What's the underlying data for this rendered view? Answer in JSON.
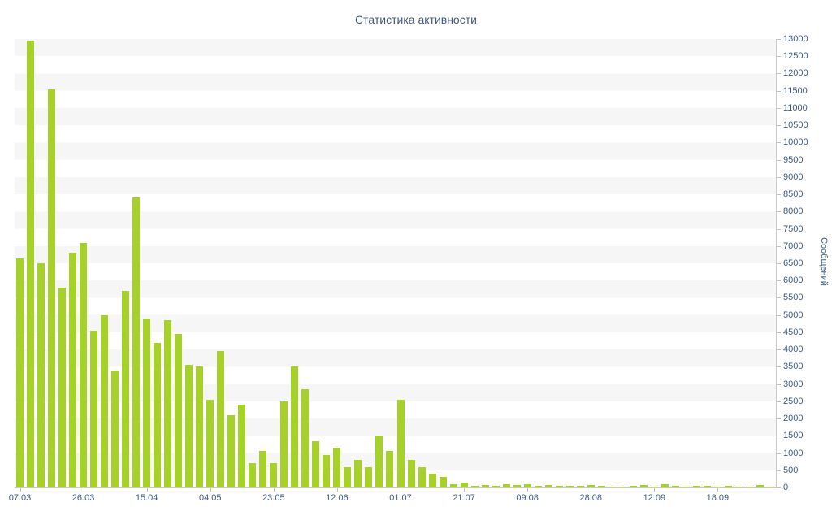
{
  "chart_data": {
    "type": "bar",
    "title": "Статистика активности",
    "ylabel": "Сообщений",
    "xlabel": "",
    "ylim": [
      0,
      13000
    ],
    "y_tick_step": 500,
    "legend": "none",
    "grid": "horizontal-bands",
    "bar_color": "#a6d129",
    "stripe_color": "#f6f6f6",
    "axis_color": "#c9c9c9",
    "text_color": "#3d5a80",
    "x_tick_labels": [
      "07.03",
      "26.03",
      "15.04",
      "04.05",
      "23.05",
      "12.06",
      "01.07",
      "21.07",
      "09.08",
      "28.08",
      "12.09",
      "18.09"
    ],
    "x_label_indices": [
      0,
      6,
      12,
      18,
      24,
      30,
      36,
      42,
      48,
      54,
      60,
      66
    ],
    "values": [
      6650,
      12950,
      6500,
      11550,
      5800,
      6800,
      7100,
      4550,
      5000,
      3400,
      5700,
      8400,
      4900,
      4200,
      4850,
      4450,
      3550,
      3500,
      2550,
      3950,
      2100,
      2400,
      700,
      1050,
      700,
      2500,
      3500,
      2850,
      1350,
      950,
      1150,
      600,
      800,
      600,
      1500,
      1050,
      2550,
      800,
      600,
      400,
      300,
      100,
      150,
      50,
      60,
      50,
      100,
      60,
      100,
      50,
      60,
      50,
      40,
      50,
      60,
      40,
      30,
      30,
      40,
      60,
      30,
      100,
      50,
      30,
      40,
      50,
      30,
      40,
      30,
      30,
      60,
      30
    ]
  }
}
